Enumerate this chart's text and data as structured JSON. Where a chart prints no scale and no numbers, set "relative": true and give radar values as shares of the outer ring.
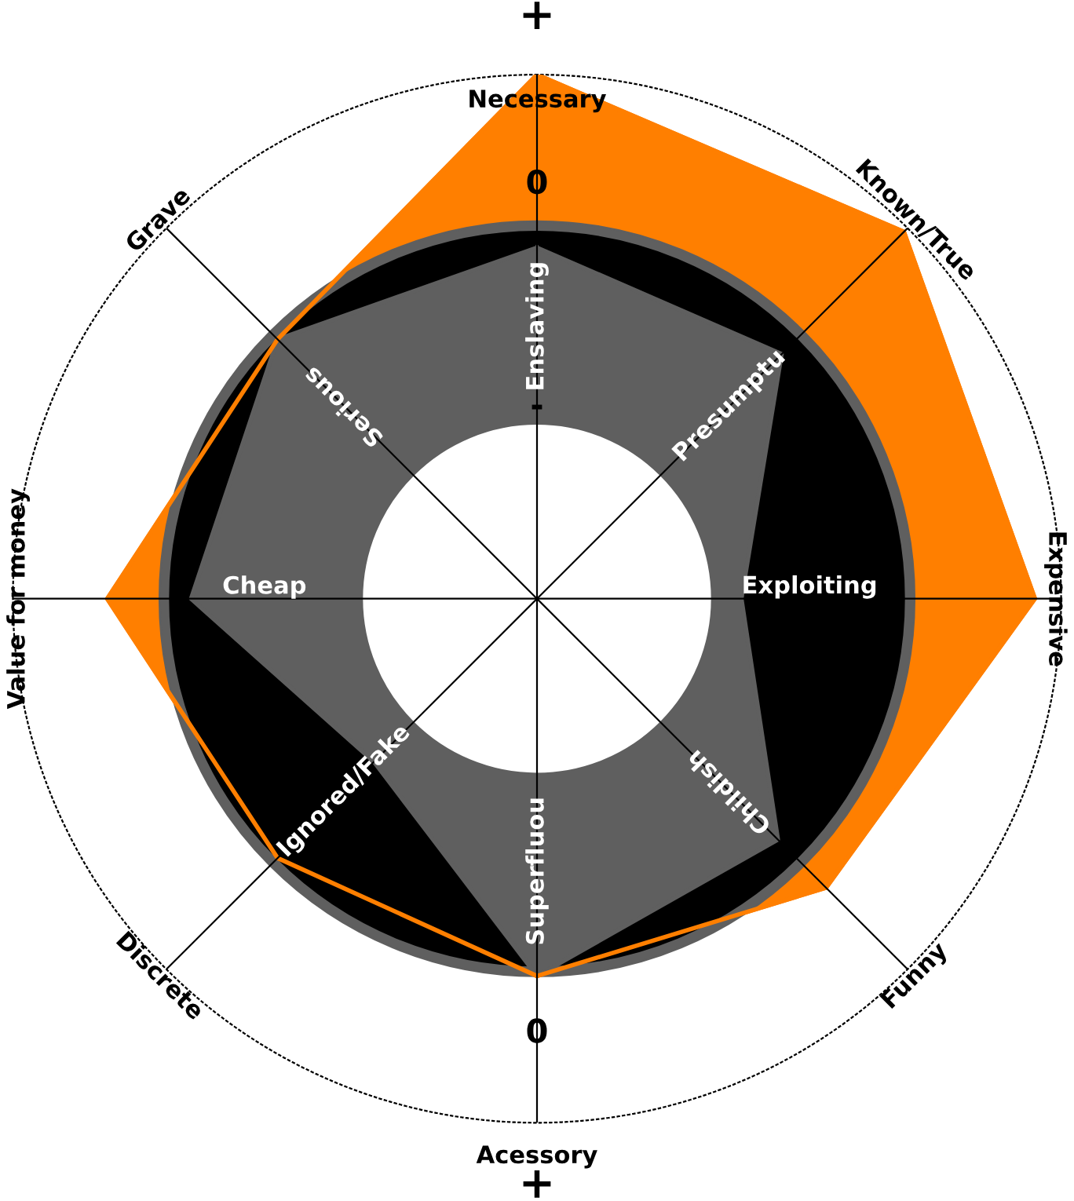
{
  "chart_data": {
    "type": "radar",
    "relative": true,
    "grid": true,
    "marker": "none",
    "categories": [
      "Necessary",
      "Known/True",
      "Expensive",
      "Funny",
      "Acessory",
      "Discrete",
      "Value for money",
      "Grave"
    ],
    "series": [
      {
        "color": "#ff7f00",
        "values": [
          1.0,
          0.99,
          0.95,
          0.78,
          0.72,
          0.7,
          0.82,
          0.7
        ]
      },
      {
        "color": "#5f5f5f",
        "values": [
          0.67,
          0.66,
          0.39,
          0.65,
          0.72,
          0.44,
          0.66,
          0.7
        ]
      }
    ],
    "annotations": [
      "+",
      "0",
      "-",
      "0",
      "+",
      "Enslaving",
      "Presumptu",
      "Exploiting",
      "Childish",
      "Superfluou",
      "Ignored/Fake",
      "Cheap",
      "Serious"
    ]
  }
}
